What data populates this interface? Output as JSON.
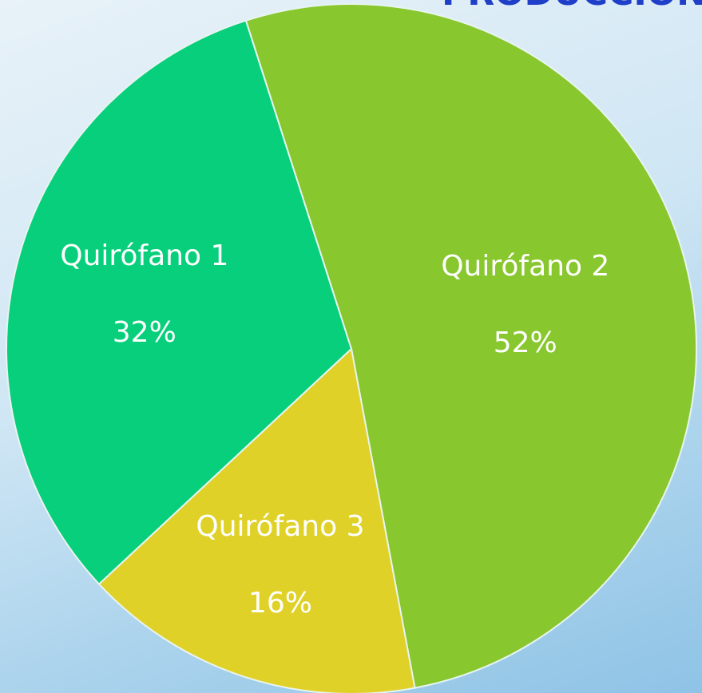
{
  "chart_data": {
    "type": "pie",
    "title": "PRODUCCIÓN",
    "categories": [
      "Quirófano 1",
      "Quirófano 2",
      "Quirófano 3"
    ],
    "values": [
      32,
      52,
      16
    ],
    "value_labels": [
      "32%",
      "52%",
      "16%"
    ],
    "colors": [
      "#08cf7b",
      "#88c72d",
      "#dfd128"
    ]
  }
}
